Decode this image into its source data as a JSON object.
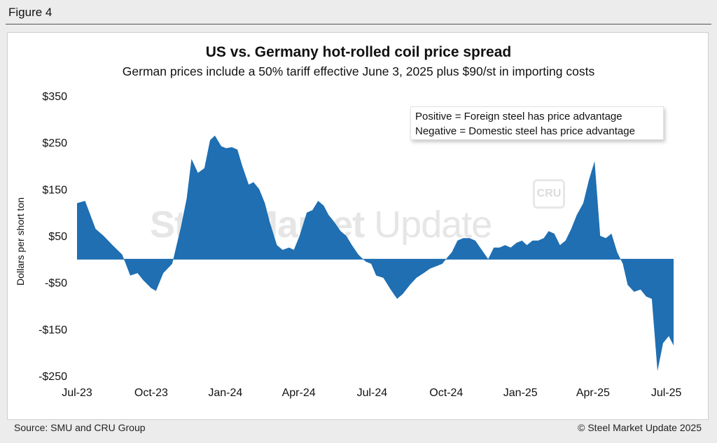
{
  "figure_label": "Figure 4",
  "source": "Source: SMU and CRU Group",
  "copyright": "© Steel Market Update 2025",
  "watermark": {
    "bold": "Steel Market",
    "light": " Update",
    "badge": "CRU"
  },
  "legend": {
    "line1": "Positive = Foreign steel has price advantage",
    "line2": "Negative = Domestic steel has price advantage"
  },
  "colors": {
    "area": "#1f6fb2",
    "background": "#ececec",
    "panel": "#ffffff"
  },
  "chart_data": {
    "type": "area",
    "title": "US vs. Germany hot-rolled coil price spread",
    "subtitle": "German prices include a 50% tariff effective June 3, 2025 plus $90/st in importing costs",
    "xlabel": "",
    "ylabel": "Dollars per short ton",
    "ylim": [
      -250,
      350
    ],
    "yticks": [
      350,
      250,
      150,
      50,
      -50,
      -150,
      -250
    ],
    "ytick_labels": [
      "$350",
      "$250",
      "$150",
      "$50",
      "-$50",
      "-$150",
      "-$250"
    ],
    "xlim": [
      "2023-07-01",
      "2025-07-10"
    ],
    "xticks": [
      "2023-07-01",
      "2023-10-01",
      "2024-01-01",
      "2024-04-01",
      "2024-07-01",
      "2024-10-01",
      "2025-01-01",
      "2025-04-01",
      "2025-07-01"
    ],
    "xtick_labels": [
      "Jul-23",
      "Oct-23",
      "Jan-24",
      "Apr-24",
      "Jul-24",
      "Oct-24",
      "Jan-25",
      "Apr-25",
      "Jul-25"
    ],
    "grid": false,
    "legend_position": "top-right",
    "series": [
      {
        "x": [
          "2023-07-01",
          "2023-07-11",
          "2023-07-24",
          "2023-08-03",
          "2023-08-14",
          "2023-08-26",
          "2023-09-05",
          "2023-09-14",
          "2023-09-21",
          "2023-10-01",
          "2023-10-07",
          "2023-10-16",
          "2023-10-27",
          "2023-11-07",
          "2023-11-14",
          "2023-11-20",
          "2023-11-28",
          "2023-12-06",
          "2023-12-13",
          "2023-12-19",
          "2023-12-27",
          "2024-01-02",
          "2024-01-09",
          "2024-01-16",
          "2024-01-22",
          "2024-01-30",
          "2024-02-05",
          "2024-02-12",
          "2024-02-19",
          "2024-02-25",
          "2024-03-05",
          "2024-03-12",
          "2024-03-20",
          "2024-03-26",
          "2024-04-02",
          "2024-04-11",
          "2024-04-18",
          "2024-04-25",
          "2024-05-02",
          "2024-05-08",
          "2024-05-15",
          "2024-05-23",
          "2024-05-30",
          "2024-06-06",
          "2024-06-14",
          "2024-06-23",
          "2024-06-30",
          "2024-07-06",
          "2024-07-15",
          "2024-07-24",
          "2024-08-01",
          "2024-08-08",
          "2024-08-17",
          "2024-08-25",
          "2024-09-03",
          "2024-09-11",
          "2024-09-19",
          "2024-09-26",
          "2024-10-03",
          "2024-10-08",
          "2024-10-15",
          "2024-10-22",
          "2024-10-30",
          "2024-11-06",
          "2024-11-14",
          "2024-11-22",
          "2024-11-29",
          "2024-12-06",
          "2024-12-13",
          "2024-12-20",
          "2024-12-27",
          "2025-01-03",
          "2025-01-09",
          "2025-01-16",
          "2025-01-23",
          "2025-01-30",
          "2025-02-05",
          "2025-02-12",
          "2025-02-19",
          "2025-02-26",
          "2025-03-05",
          "2025-03-12",
          "2025-03-20",
          "2025-03-27",
          "2025-04-03",
          "2025-04-10",
          "2025-04-17",
          "2025-04-24",
          "2025-05-01",
          "2025-05-08",
          "2025-05-14",
          "2025-05-22",
          "2025-05-30",
          "2025-06-06",
          "2025-06-13",
          "2025-06-20",
          "2025-06-27",
          "2025-07-04",
          "2025-07-10"
        ],
        "values": [
          120,
          125,
          65,
          50,
          30,
          10,
          -35,
          -30,
          -45,
          -62,
          -68,
          -30,
          -10,
          70,
          130,
          215,
          185,
          195,
          255,
          265,
          242,
          238,
          240,
          235,
          200,
          160,
          165,
          150,
          120,
          80,
          30,
          20,
          25,
          20,
          50,
          100,
          105,
          125,
          115,
          95,
          80,
          60,
          50,
          30,
          10,
          -5,
          -10,
          -35,
          -40,
          -65,
          -85,
          -75,
          -55,
          -40,
          -30,
          -20,
          -15,
          -10,
          5,
          15,
          40,
          45,
          45,
          40,
          20,
          0,
          25,
          25,
          30,
          25,
          35,
          40,
          30,
          40,
          40,
          45,
          60,
          55,
          30,
          40,
          65,
          95,
          120,
          170,
          210,
          50,
          45,
          55,
          15,
          -10,
          -55,
          -70,
          -65,
          -80,
          -85,
          -240,
          -180,
          -165,
          -185
        ]
      }
    ]
  }
}
